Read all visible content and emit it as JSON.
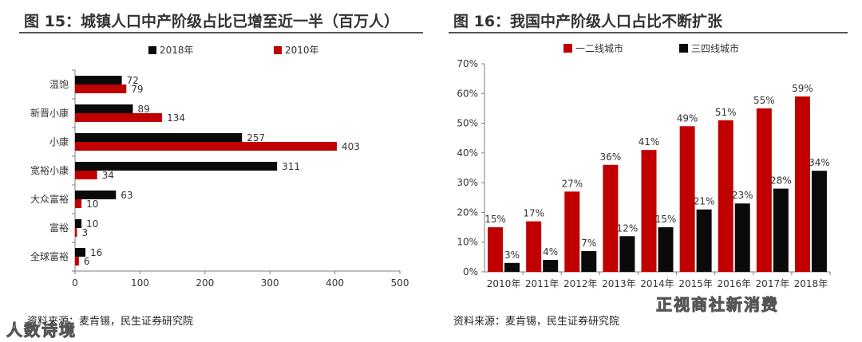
{
  "left": {
    "title": "图 15：城镇人口中产阶级占比已增至近一半（百万人）",
    "source": "资料来源：麦肯锡，民生证券研究院",
    "watermark": "人数诗境"
  },
  "right": {
    "title": "图 16：我国中产阶级人口占比不断扩张",
    "source": "资料来源：麦肯锡，民生证券研究院",
    "watermark": "正视商社新消费"
  },
  "colors": {
    "black": "#0a0a0a",
    "red": "#c00000",
    "axis": "#7f7f7f"
  },
  "chart_data": [
    {
      "type": "bar",
      "orientation": "horizontal",
      "categories": [
        "温饱",
        "新晋小康",
        "小康",
        "宽裕小康",
        "大众富裕",
        "富裕",
        "全球富裕"
      ],
      "series": [
        {
          "name": "2018年",
          "color": "#0a0a0a",
          "values": [
            72,
            89,
            257,
            311,
            63,
            10,
            16
          ]
        },
        {
          "name": "2010年",
          "color": "#c00000",
          "values": [
            79,
            134,
            403,
            34,
            10,
            3,
            6
          ]
        }
      ],
      "xlim": [
        0,
        500
      ],
      "xticks": [
        0,
        100,
        200,
        300,
        400,
        500
      ],
      "legend": "top"
    },
    {
      "type": "bar",
      "categories": [
        "2010年",
        "2011年",
        "2012年",
        "2013年",
        "2014年",
        "2015年",
        "2016年",
        "2017年",
        "2018年"
      ],
      "series": [
        {
          "name": "一二线城市",
          "color": "#c00000",
          "values": [
            15,
            17,
            27,
            36,
            41,
            49,
            51,
            55,
            59
          ]
        },
        {
          "name": "三四线城市",
          "color": "#0a0a0a",
          "values": [
            3,
            4,
            7,
            12,
            15,
            21,
            23,
            28,
            34
          ]
        }
      ],
      "ylim": [
        0,
        70
      ],
      "yticks": [
        "0%",
        "10%",
        "20%",
        "30%",
        "40%",
        "50%",
        "60%",
        "70%"
      ],
      "unit": "%",
      "legend": "top"
    }
  ]
}
